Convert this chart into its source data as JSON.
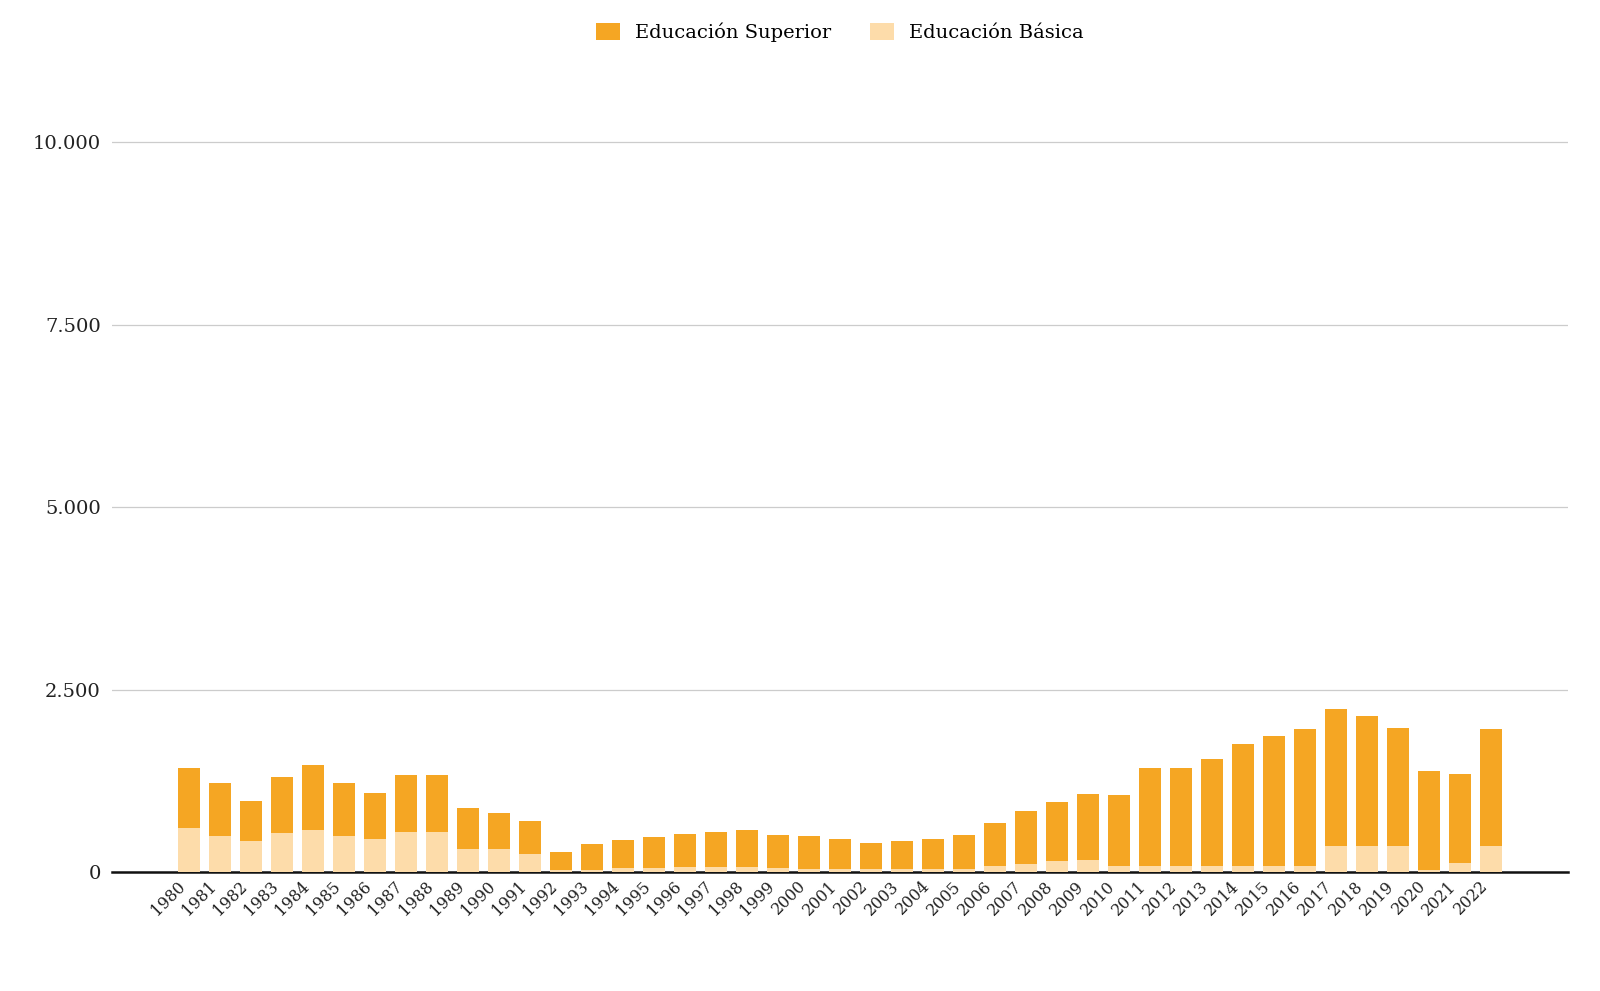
{
  "years": [
    1980,
    1981,
    1982,
    1983,
    1984,
    1985,
    1986,
    1987,
    1988,
    1989,
    1990,
    1991,
    1992,
    1993,
    1994,
    1995,
    1996,
    1997,
    1998,
    1999,
    2000,
    2001,
    2002,
    2003,
    2004,
    2005,
    2006,
    2007,
    2008,
    2009,
    2010,
    2011,
    2012,
    2013,
    2014,
    2015,
    2016,
    2017,
    2018,
    2019,
    2020,
    2021,
    2022
  ],
  "superior": [
    830,
    720,
    560,
    760,
    890,
    720,
    630,
    790,
    770,
    560,
    500,
    450,
    250,
    360,
    390,
    420,
    450,
    480,
    500,
    450,
    450,
    410,
    360,
    390,
    420,
    470,
    590,
    720,
    820,
    900,
    980,
    1350,
    1350,
    1470,
    1680,
    1780,
    1880,
    1870,
    1780,
    1620,
    1350,
    1210,
    1600
  ],
  "basica": [
    600,
    500,
    420,
    540,
    580,
    500,
    450,
    545,
    555,
    320,
    310,
    250,
    30,
    30,
    50,
    60,
    70,
    70,
    70,
    60,
    40,
    40,
    40,
    40,
    40,
    40,
    85,
    115,
    145,
    165,
    80,
    80,
    80,
    80,
    80,
    80,
    80,
    360,
    360,
    355,
    30,
    130,
    360
  ],
  "color_superior": "#F5A623",
  "color_basica": "#FDDCAA",
  "legend_labels": [
    "Educación Superior",
    "Educación Básica"
  ],
  "ylim_max": 11000,
  "yticks": [
    0,
    2500,
    5000,
    7500,
    10000
  ],
  "ytick_labels": [
    "0",
    "2.500",
    "5.000",
    "7.500",
    "10.000"
  ],
  "background_color": "#ffffff",
  "grid_color": "#cccccc"
}
